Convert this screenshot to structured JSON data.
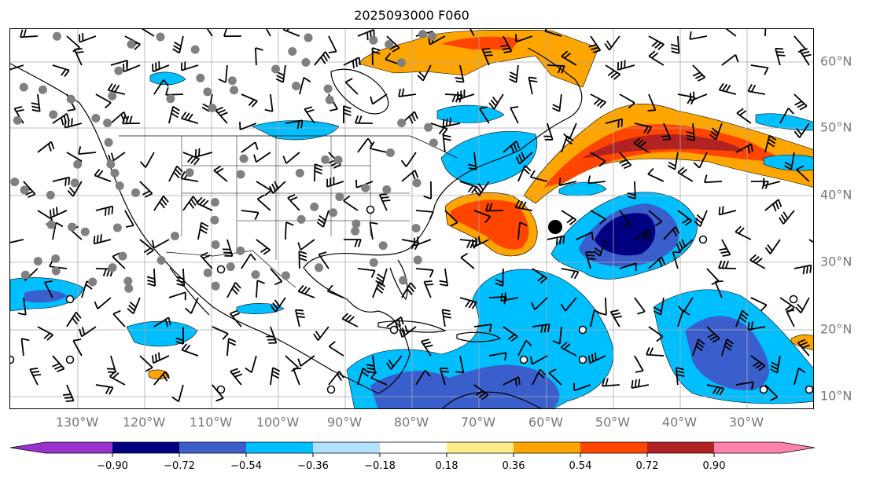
{
  "title": "2025093000 F060",
  "lat_labels": [
    "60°N",
    "50°N",
    "40°N",
    "30°N",
    "20°N",
    "10°N"
  ],
  "lon_labels": [
    "130°W",
    "120°W",
    "110°W",
    "100°W",
    "90°W",
    "80°W",
    "70°W",
    "60°W",
    "50°W",
    "40°W",
    "30°W"
  ],
  "colorbar": {
    "ticks": [
      "−0.90",
      "−0.72",
      "−0.54",
      "−0.36",
      "−0.18",
      "0.18",
      "0.36",
      "0.54",
      "0.72",
      "0.90"
    ],
    "colors": [
      "#9932CC",
      "#000080",
      "#3A5FCD",
      "#00BFFF",
      "#B0E2FF",
      "#FFFFFF",
      "#FFEC8B",
      "#FFA500",
      "#FF4500",
      "#B22222",
      "#FF82AB"
    ]
  }
}
